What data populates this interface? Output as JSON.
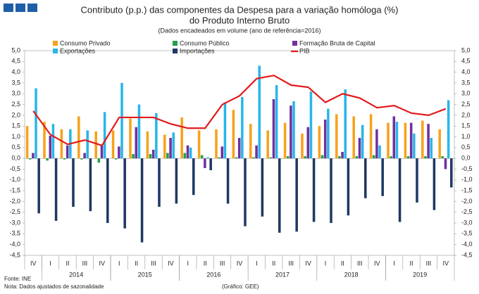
{
  "chart_data": {
    "type": "bar",
    "title": "Contributo (p.p.) das componentes da Despesa para a variação homóloga (%)",
    "title_line2": "do Produto Interno Bruto",
    "subtitle": "(Dados encadeados em volume  (ano de referência=2016)",
    "source": "Fonte: INE",
    "note": "Nota: Dados ajustados de sazonalidade",
    "credit": "(Gráfico: GEE)",
    "categories": [
      "IV",
      "I",
      "II",
      "III",
      "IV",
      "I",
      "II",
      "III",
      "IV",
      "I",
      "II",
      "III",
      "IV",
      "I",
      "II",
      "III",
      "IV",
      "I",
      "II",
      "III",
      "IV",
      "I",
      "II",
      "III",
      "IV"
    ],
    "years": [
      "2014",
      "2015",
      "2016",
      "2017",
      "2018",
      "2019"
    ],
    "series": [
      {
        "name": "Consumo Privado",
        "color": "#f7a21b",
        "values": [
          1.5,
          1.7,
          1.35,
          1.95,
          1.25,
          1.3,
          1.85,
          1.25,
          1.1,
          1.9,
          1.3,
          1.35,
          2.25,
          1.6,
          1.3,
          1.65,
          1.15,
          1.5,
          2.05,
          1.95,
          2.05,
          1.65,
          1.65,
          1.75,
          1.35
        ]
      },
      {
        "name": "Consumo Público",
        "color": "#1fa04a",
        "values": [
          -0.05,
          -0.1,
          -0.05,
          -0.05,
          -0.2,
          -0.05,
          0.2,
          0.2,
          0.25,
          0.25,
          0.15,
          0.05,
          0.05,
          0.05,
          0.05,
          0.1,
          0.1,
          0.15,
          0.1,
          0.1,
          0.15,
          0.1,
          0.1,
          0.1,
          0.1
        ]
      },
      {
        "name": "Formação Bruta de Capital",
        "color": "#7030a0",
        "values": [
          0.25,
          1.05,
          0.6,
          0.25,
          0.6,
          0.55,
          1.45,
          0.4,
          0.95,
          0.6,
          -0.45,
          0.55,
          0.95,
          0.6,
          2.75,
          2.45,
          1.45,
          1.8,
          0.3,
          0.95,
          1.35,
          1.95,
          1.65,
          1.6,
          -0.5
        ]
      },
      {
        "name": "Exportações",
        "color": "#29b6e8",
        "values": [
          3.25,
          1.6,
          1.35,
          1.3,
          2.15,
          3.5,
          2.5,
          2.1,
          1.2,
          0.5,
          0.05,
          2.6,
          2.85,
          4.3,
          3.4,
          2.65,
          3.1,
          2.3,
          3.2,
          1.55,
          0.6,
          1.7,
          1.15,
          0.95,
          2.7
        ]
      },
      {
        "name": "Importações",
        "color": "#1f3864",
        "values": [
          -2.55,
          -2.9,
          -2.25,
          -2.45,
          -3.0,
          -3.25,
          -3.9,
          -2.25,
          -2.1,
          -1.7,
          -0.55,
          -2.1,
          -3.15,
          -2.7,
          -3.45,
          -3.4,
          -2.95,
          -3.0,
          -2.65,
          -1.85,
          -1.75,
          -2.95,
          -2.05,
          -2.4,
          -1.35
        ]
      },
      {
        "name": "PIB",
        "type": "line",
        "color": "#e31a1c",
        "values": [
          2.2,
          1.1,
          0.65,
          0.85,
          0.6,
          1.9,
          1.9,
          1.9,
          1.6,
          1.4,
          1.4,
          2.5,
          2.9,
          3.7,
          3.85,
          3.4,
          3.3,
          2.6,
          3.0,
          2.8,
          2.35,
          2.45,
          2.1,
          2.0,
          2.3
        ]
      }
    ],
    "ylim": [
      -4.5,
      5.0
    ],
    "yticks": [
      {
        "value": 5.0,
        "label": "5,0"
      },
      {
        "value": 4.5,
        "label": "4,5"
      },
      {
        "value": 4.0,
        "label": "4,0"
      },
      {
        "value": 3.5,
        "label": "3,5"
      },
      {
        "value": 3.0,
        "label": "3,0"
      },
      {
        "value": 2.5,
        "label": "2,5"
      },
      {
        "value": 2.0,
        "label": "2,0"
      },
      {
        "value": 1.5,
        "label": "1,5"
      },
      {
        "value": 1.0,
        "label": "1,0"
      },
      {
        "value": 0.5,
        "label": "0,5"
      },
      {
        "value": 0.0,
        "label": "0,0"
      },
      {
        "value": -0.5,
        "label": "-0,5"
      },
      {
        "value": -1.0,
        "label": "-1,0"
      },
      {
        "value": -1.5,
        "label": "-1,5"
      },
      {
        "value": -2.0,
        "label": "-2,0"
      },
      {
        "value": -2.5,
        "label": "-2,5"
      },
      {
        "value": -3.0,
        "label": "-3,0"
      },
      {
        "value": -3.5,
        "label": "-3,5"
      },
      {
        "value": -4.0,
        "label": "-4,0"
      },
      {
        "value": -4.5,
        "label": "-4,5"
      }
    ]
  }
}
